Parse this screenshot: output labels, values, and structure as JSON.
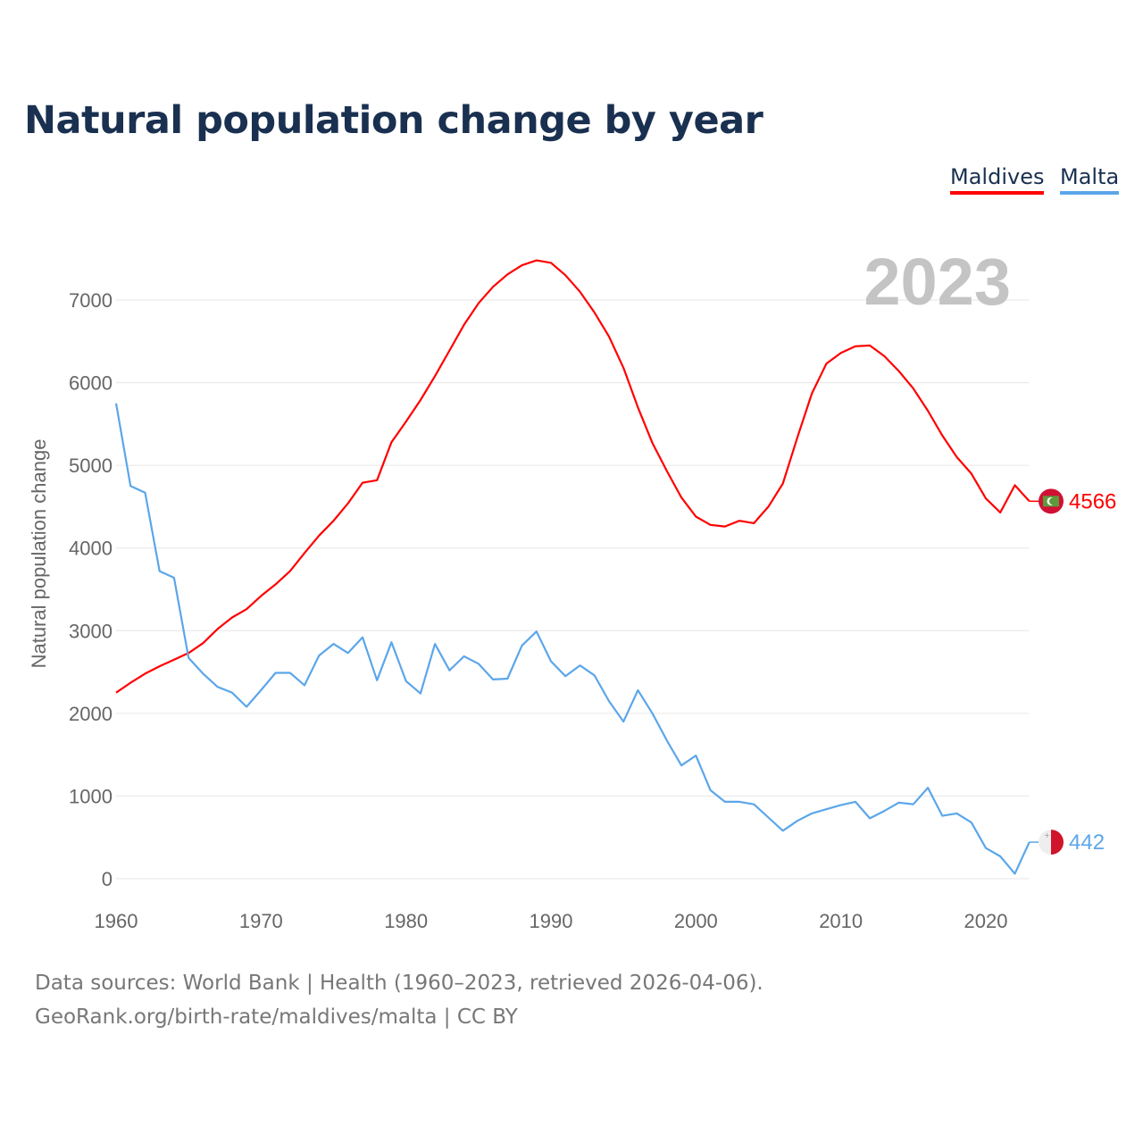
{
  "title": "Natural population change by year",
  "legend": [
    {
      "label": "Maldives",
      "color": "#ff0000"
    },
    {
      "label": "Malta",
      "color": "#5ba6ea"
    }
  ],
  "footer": {
    "line1": "Data sources: World Bank | Health (1960–2023, retrieved 2026-04-06).",
    "line2": "GeoRank.org/birth-rate/maldives/malta | CC BY"
  },
  "chart_data": {
    "type": "line",
    "title": "Natural population change by year",
    "xlabel": "",
    "ylabel": "Natural population change",
    "year_label": "2023",
    "xlim": [
      1960,
      2023
    ],
    "ylim": [
      0,
      7600
    ],
    "xticks": [
      1960,
      1970,
      1980,
      1990,
      2000,
      2010,
      2020
    ],
    "yticks": [
      0,
      1000,
      2000,
      3000,
      4000,
      5000,
      6000,
      7000
    ],
    "grid": true,
    "legend_position": "top-right",
    "x_start": 1960,
    "series": [
      {
        "name": "Maldives",
        "color": "#ff0000",
        "end_label": "4566",
        "values": [
          2250,
          2370,
          2480,
          2570,
          2650,
          2730,
          2850,
          3020,
          3160,
          3260,
          3420,
          3560,
          3720,
          3940,
          4150,
          4330,
          4540,
          4790,
          4820,
          5280,
          5530,
          5790,
          6080,
          6390,
          6700,
          6960,
          7160,
          7310,
          7420,
          7480,
          7450,
          7300,
          7100,
          6850,
          6560,
          6180,
          5700,
          5270,
          4930,
          4610,
          4380,
          4280,
          4260,
          4330,
          4300,
          4500,
          4780,
          5340,
          5870,
          6230,
          6360,
          6440,
          6450,
          6320,
          6140,
          5930,
          5660,
          5360,
          5100,
          4900,
          4600,
          4430,
          4760,
          4566
        ]
      },
      {
        "name": "Malta",
        "color": "#5ba6ea",
        "end_label": "442",
        "values": [
          5750,
          4750,
          4670,
          3720,
          3640,
          2670,
          2480,
          2320,
          2250,
          2080,
          2280,
          2490,
          2490,
          2340,
          2700,
          2840,
          2730,
          2920,
          2400,
          2860,
          2390,
          2240,
          2840,
          2520,
          2690,
          2600,
          2410,
          2420,
          2820,
          2990,
          2630,
          2450,
          2580,
          2460,
          2150,
          1900,
          2280,
          2000,
          1670,
          1370,
          1490,
          1070,
          930,
          930,
          900,
          740,
          580,
          700,
          790,
          840,
          890,
          930,
          730,
          820,
          920,
          900,
          1100,
          760,
          790,
          680,
          370,
          270,
          60,
          442
        ]
      }
    ]
  }
}
